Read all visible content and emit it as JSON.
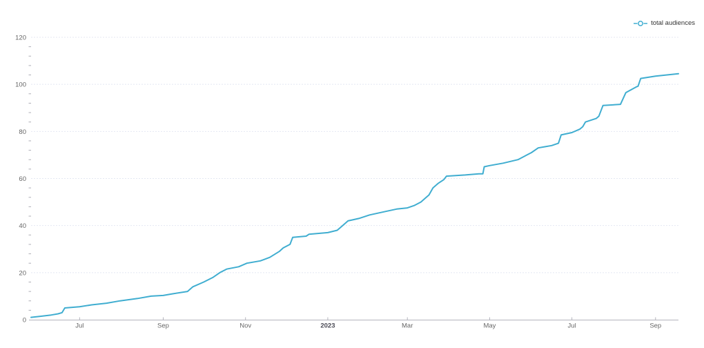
{
  "legend": {
    "label": "total audiences"
  },
  "colors": {
    "line": "#3fadd0",
    "grid": "#e4e7f2",
    "axis": "#b3b3bc",
    "minor_tick": "#aeaeb6",
    "tick_label": "#666666",
    "year_label": "#4a4a55",
    "background": "#ffffff"
  },
  "chart_data": {
    "type": "line",
    "title": "",
    "xlabel": "",
    "ylabel": "",
    "grid": "horizontal-dashed",
    "legend_position": "top-right",
    "ylim": [
      0,
      120
    ],
    "y_major_step": 20,
    "y_minor_step": 4,
    "x_domain": [
      "2022-05-26",
      "2023-09-18"
    ],
    "x_ticks": [
      {
        "date": "2022-07-01",
        "label": "Jul"
      },
      {
        "date": "2022-09-01",
        "label": "Sep"
      },
      {
        "date": "2022-11-01",
        "label": "Nov"
      },
      {
        "date": "2023-01-01",
        "label": "2023",
        "bold": true
      },
      {
        "date": "2023-03-01",
        "label": "Mar"
      },
      {
        "date": "2023-05-01",
        "label": "May"
      },
      {
        "date": "2023-07-01",
        "label": "Jul"
      },
      {
        "date": "2023-09-01",
        "label": "Sep"
      }
    ],
    "series": [
      {
        "name": "total audiences",
        "points": [
          [
            "2022-05-26",
            1
          ],
          [
            "2022-06-03",
            1.5
          ],
          [
            "2022-06-10",
            2
          ],
          [
            "2022-06-15",
            2.5
          ],
          [
            "2022-06-18",
            3
          ],
          [
            "2022-06-20",
            5
          ],
          [
            "2022-07-01",
            5.5
          ],
          [
            "2022-07-10",
            6.3
          ],
          [
            "2022-07-21",
            7
          ],
          [
            "2022-07-31",
            8
          ],
          [
            "2022-08-13",
            9
          ],
          [
            "2022-08-23",
            10
          ],
          [
            "2022-09-01",
            10.3
          ],
          [
            "2022-09-08",
            11
          ],
          [
            "2022-09-19",
            12
          ],
          [
            "2022-09-23",
            14
          ],
          [
            "2022-10-01",
            16
          ],
          [
            "2022-10-08",
            18
          ],
          [
            "2022-10-13",
            20
          ],
          [
            "2022-10-18",
            21.5
          ],
          [
            "2022-10-27",
            22.5
          ],
          [
            "2022-11-02",
            24
          ],
          [
            "2022-11-12",
            25
          ],
          [
            "2022-11-19",
            26.5
          ],
          [
            "2022-11-26",
            29
          ],
          [
            "2022-11-29",
            30.5
          ],
          [
            "2022-12-04",
            32
          ],
          [
            "2022-12-06",
            35
          ],
          [
            "2022-12-16",
            35.5
          ],
          [
            "2022-12-18",
            36.3
          ],
          [
            "2023-01-01",
            37
          ],
          [
            "2023-01-08",
            38
          ],
          [
            "2023-01-12",
            40
          ],
          [
            "2023-01-16",
            42
          ],
          [
            "2023-01-24",
            43
          ],
          [
            "2023-02-01",
            44.5
          ],
          [
            "2023-02-13",
            46
          ],
          [
            "2023-02-21",
            47
          ],
          [
            "2023-03-01",
            47.5
          ],
          [
            "2023-03-06",
            48.5
          ],
          [
            "2023-03-11",
            50
          ],
          [
            "2023-03-15",
            52
          ],
          [
            "2023-03-17",
            53
          ],
          [
            "2023-03-20",
            56
          ],
          [
            "2023-03-24",
            58
          ],
          [
            "2023-03-28",
            59.5
          ],
          [
            "2023-03-30",
            61
          ],
          [
            "2023-04-13",
            61.5
          ],
          [
            "2023-04-23",
            62
          ],
          [
            "2023-04-26",
            62
          ],
          [
            "2023-04-27",
            65
          ],
          [
            "2023-05-01",
            65.5
          ],
          [
            "2023-05-11",
            66.5
          ],
          [
            "2023-05-22",
            68
          ],
          [
            "2023-05-27",
            69.5
          ],
          [
            "2023-06-01",
            71
          ],
          [
            "2023-06-06",
            73
          ],
          [
            "2023-06-11",
            73.5
          ],
          [
            "2023-06-16",
            74
          ],
          [
            "2023-06-21",
            75
          ],
          [
            "2023-06-23",
            78.5
          ],
          [
            "2023-07-01",
            79.5
          ],
          [
            "2023-07-07",
            81
          ],
          [
            "2023-07-09",
            82
          ],
          [
            "2023-07-11",
            84
          ],
          [
            "2023-07-19",
            85.5
          ],
          [
            "2023-07-21",
            86.5
          ],
          [
            "2023-07-24",
            91
          ],
          [
            "2023-08-06",
            91.5
          ],
          [
            "2023-08-10",
            96.5
          ],
          [
            "2023-08-18",
            99
          ],
          [
            "2023-08-19",
            99.2
          ],
          [
            "2023-08-21",
            102.5
          ],
          [
            "2023-09-01",
            103.5
          ],
          [
            "2023-09-18",
            104.5
          ]
        ]
      }
    ]
  }
}
